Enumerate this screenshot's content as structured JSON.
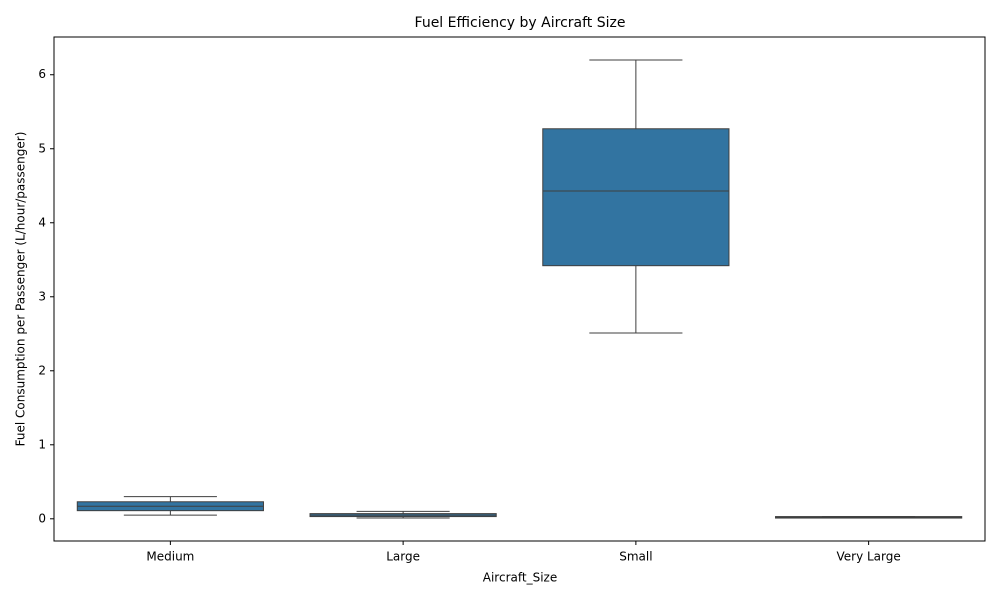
{
  "chart_data": {
    "type": "box",
    "title": "Fuel Efficiency by Aircraft Size",
    "xlabel": "Aircraft_Size",
    "ylabel": "Fuel Consumption per Passenger (L/hour/passenger)",
    "categories": [
      "Medium",
      "Large",
      "Small",
      "Very Large"
    ],
    "whislo": [
      0.05,
      0.01,
      2.51,
      0.01
    ],
    "q1": [
      0.11,
      0.03,
      3.42,
      0.01
    ],
    "median": [
      0.17,
      0.05,
      4.43,
      0.02
    ],
    "q3": [
      0.23,
      0.07,
      5.27,
      0.03
    ],
    "whishi": [
      0.3,
      0.1,
      6.2,
      0.03
    ],
    "color": "#3274a1",
    "line_color": "#3f3f3f",
    "ylim": [
      -0.3,
      6.51
    ],
    "yticks": [
      0,
      1,
      2,
      3,
      4,
      5,
      6
    ]
  }
}
